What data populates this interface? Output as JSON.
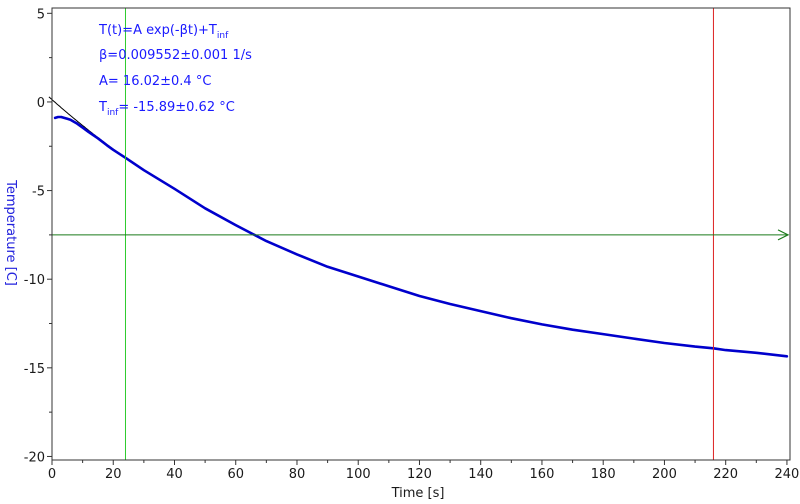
{
  "chart_data": {
    "type": "line",
    "xlabel": "Time [s]",
    "ylabel": "Temperature [C]",
    "xlim": [
      0,
      241
    ],
    "ylim": [
      -20.2,
      5.3
    ],
    "x_ticks": [
      0,
      20,
      40,
      60,
      80,
      100,
      120,
      140,
      160,
      180,
      200,
      220,
      240
    ],
    "y_ticks": [
      5,
      0,
      -5,
      -10,
      -15,
      -20
    ],
    "grid": false,
    "fit_equation": {
      "base": "T(t)=A exp(-βt)+T",
      "sub": "inf"
    },
    "fit_params": {
      "beta": "β=0.009552±0.001 1/s",
      "A": "A= 16.02±0.4 °C",
      "tinf_prefix": "T",
      "tinf_sub": "inf",
      "tinf_value": "= -15.89±0.62 °C"
    },
    "fit": {
      "A": 16.02,
      "beta": 0.009552,
      "T_inf": -15.89
    },
    "series": [
      {
        "values_x": [
          1,
          2,
          3,
          4,
          5,
          6,
          8,
          10,
          12,
          15,
          18,
          20,
          24,
          30,
          40,
          50,
          60,
          70,
          80,
          90,
          100,
          110,
          120,
          130,
          140,
          150,
          160,
          170,
          180,
          190,
          200,
          210,
          216,
          220,
          230,
          240
        ],
        "values_y": [
          -0.9,
          -0.85,
          -0.85,
          -0.9,
          -0.95,
          -1.0,
          -1.2,
          -1.45,
          -1.7,
          -2.05,
          -2.45,
          -2.7,
          -3.15,
          -3.85,
          -4.9,
          -6.0,
          -6.95,
          -7.85,
          -8.6,
          -9.3,
          -9.85,
          -10.4,
          -10.95,
          -11.4,
          -11.8,
          -12.2,
          -12.55,
          -12.85,
          -13.1,
          -13.35,
          -13.6,
          -13.8,
          -13.9,
          -14.0,
          -14.15,
          -14.35
        ],
        "color": "#0000cc"
      }
    ],
    "markers": {
      "green_vline_x": 24,
      "red_vline_x": 216,
      "hline_y": -7.5
    },
    "colors": {
      "data": "#0000cc",
      "fit": "#000000",
      "green_line": "#2ecc2e",
      "red_line": "#dd2222",
      "hline": "#1a7a1a",
      "annotation": "#1a1aff",
      "ylabel": "#2222dd"
    }
  }
}
